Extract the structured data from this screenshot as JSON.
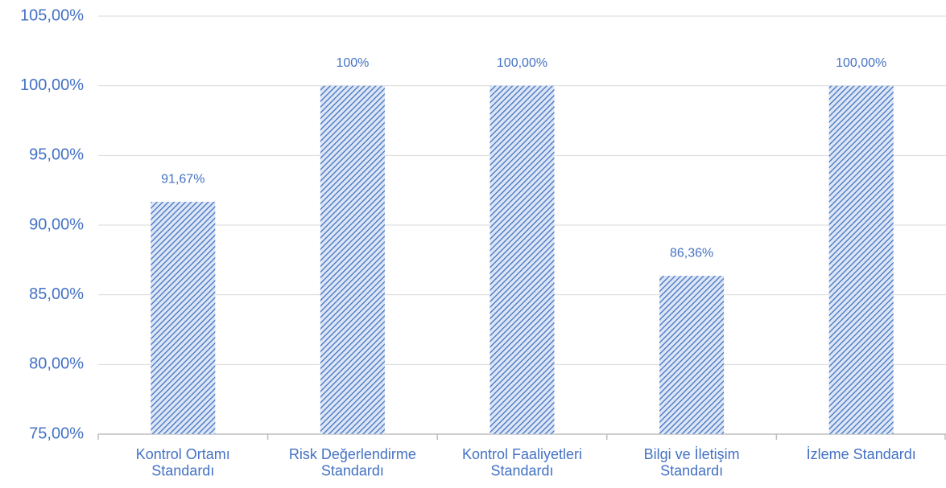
{
  "chart_data": {
    "type": "bar",
    "categories": [
      "Kontrol Ortamı\nStandardı",
      "Risk Değerlendirme\nStandardı",
      "Kontrol Faaliyetleri\nStandardı",
      "Bilgi ve İletişim\nStandardı",
      "İzleme Standardı"
    ],
    "values": [
      91.67,
      100,
      100,
      86.36,
      100
    ],
    "value_labels": [
      "91,67%",
      "100%",
      "100,00%",
      "86,36%",
      "100,00%"
    ],
    "color": "#4472c4",
    "ylim": [
      75,
      105
    ],
    "yticks": [
      {
        "value": 75,
        "label": "75,00%"
      },
      {
        "value": 80,
        "label": "80,00%"
      },
      {
        "value": 85,
        "label": "85,00%"
      },
      {
        "value": 90,
        "label": "90,00%"
      },
      {
        "value": 95,
        "label": "95,00%"
      },
      {
        "value": 100,
        "label": "100,00%"
      },
      {
        "value": 105,
        "label": "105,00%"
      }
    ],
    "grid": true
  }
}
